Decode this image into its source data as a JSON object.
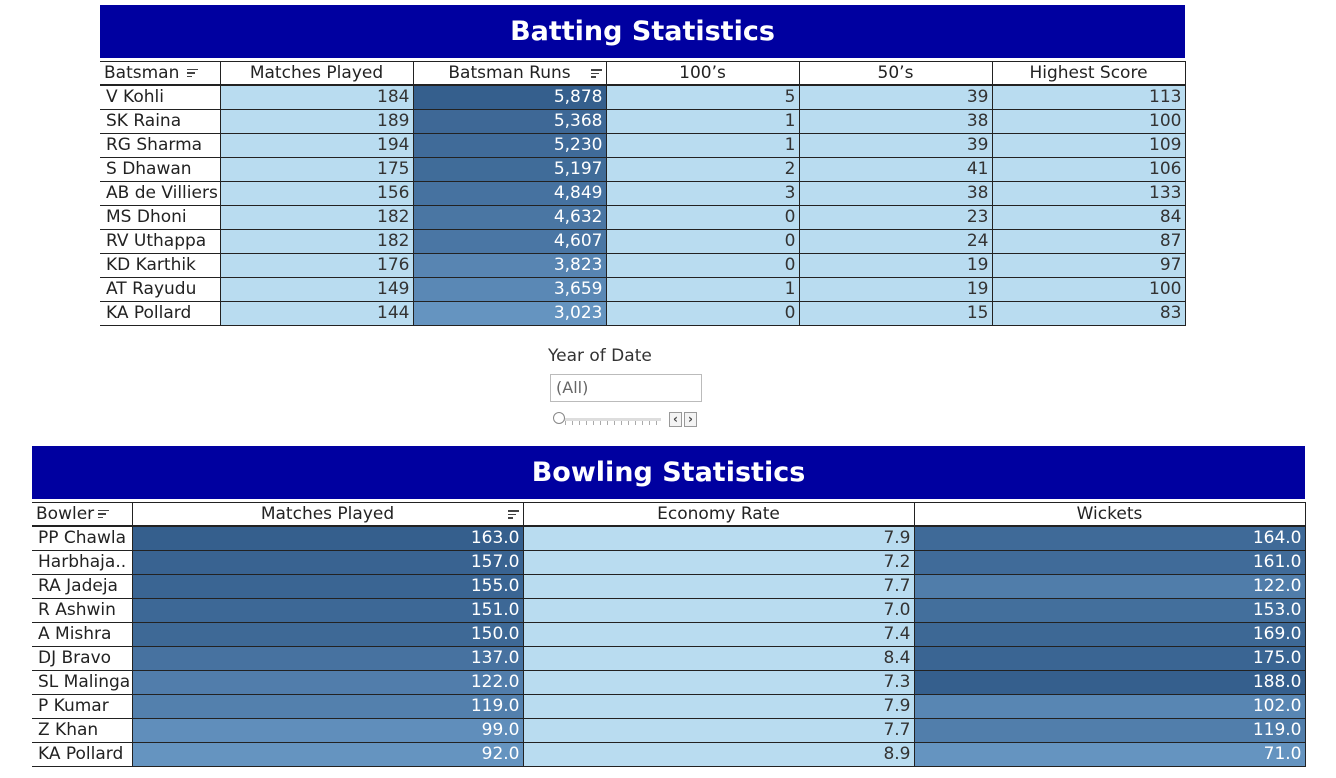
{
  "batting": {
    "title": "Batting Statistics",
    "columns": [
      "Batsman",
      "Matches Played",
      "Batsman Runs",
      "100’s",
      "50’s",
      "Highest Score"
    ],
    "rows": [
      {
        "name": "V Kohli",
        "matches": "184",
        "runs": "5,878",
        "hundreds": "5",
        "fifties": "39",
        "highest": "113"
      },
      {
        "name": "SK Raina",
        "matches": "189",
        "runs": "5,368",
        "hundreds": "1",
        "fifties": "38",
        "highest": "100"
      },
      {
        "name": "RG Sharma",
        "matches": "194",
        "runs": "5,230",
        "hundreds": "1",
        "fifties": "39",
        "highest": "109"
      },
      {
        "name": "S Dhawan",
        "matches": "175",
        "runs": "5,197",
        "hundreds": "2",
        "fifties": "41",
        "highest": "106"
      },
      {
        "name": "AB de Villiers",
        "matches": "156",
        "runs": "4,849",
        "hundreds": "3",
        "fifties": "38",
        "highest": "133"
      },
      {
        "name": "MS Dhoni",
        "matches": "182",
        "runs": "4,632",
        "hundreds": "0",
        "fifties": "23",
        "highest": "84"
      },
      {
        "name": "RV Uthappa",
        "matches": "182",
        "runs": "4,607",
        "hundreds": "0",
        "fifties": "24",
        "highest": "87"
      },
      {
        "name": "KD Karthik",
        "matches": "176",
        "runs": "3,823",
        "hundreds": "0",
        "fifties": "19",
        "highest": "97"
      },
      {
        "name": "AT Rayudu",
        "matches": "149",
        "runs": "3,659",
        "hundreds": "1",
        "fifties": "19",
        "highest": "100"
      },
      {
        "name": "KA Pollard",
        "matches": "144",
        "runs": "3,023",
        "hundreds": "0",
        "fifties": "15",
        "highest": "83"
      }
    ]
  },
  "filter": {
    "title": "Year of Date",
    "value": "(All)"
  },
  "bowling": {
    "title": "Bowling Statistics",
    "columns": [
      "Bowler",
      "Matches Played",
      "Economy Rate",
      "Wickets"
    ],
    "rows": [
      {
        "name": "PP Chawla",
        "matches": "163.0",
        "economy": "7.9",
        "wickets": "164.0"
      },
      {
        "name": "Harbhaja..",
        "matches": "157.0",
        "economy": "7.2",
        "wickets": "161.0"
      },
      {
        "name": "RA Jadeja",
        "matches": "155.0",
        "economy": "7.7",
        "wickets": "122.0"
      },
      {
        "name": "R Ashwin",
        "matches": "151.0",
        "economy": "7.0",
        "wickets": "153.0"
      },
      {
        "name": "A Mishra",
        "matches": "150.0",
        "economy": "7.4",
        "wickets": "169.0"
      },
      {
        "name": "DJ Bravo",
        "matches": "137.0",
        "economy": "8.4",
        "wickets": "175.0"
      },
      {
        "name": "SL Malinga",
        "matches": "122.0",
        "economy": "7.3",
        "wickets": "188.0"
      },
      {
        "name": "P Kumar",
        "matches": "119.0",
        "economy": "7.9",
        "wickets": "102.0"
      },
      {
        "name": "Z Khan",
        "matches": "99.0",
        "economy": "7.7",
        "wickets": "119.0"
      },
      {
        "name": "KA Pollard",
        "matches": "92.0",
        "economy": "8.9",
        "wickets": "71.0"
      }
    ]
  },
  "colors": {
    "banner": "#0000a0",
    "light_cell": "#b9dcf0",
    "dark_cell": "#355f8d",
    "mid_cell": "#6a9ccb"
  }
}
